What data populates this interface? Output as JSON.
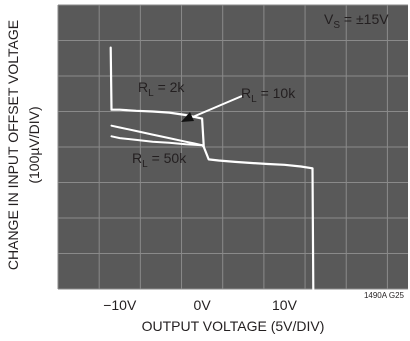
{
  "chart_data": {
    "type": "line",
    "xlabel": "OUTPUT VOLTAGE (5V/DIV)",
    "ylabel": "CHANGE IN INPUT OFFSET VOLTAGE",
    "ylabel_units": "(100µV/DIV)",
    "x_tick_labels": [
      "−10V",
      "0V",
      "10V"
    ],
    "x_tick_values": [
      -10,
      0,
      10
    ],
    "xlim": [
      -17.5,
      25
    ],
    "ylim": [
      -400,
      400
    ],
    "grid": true,
    "background": "oscilloscope photo",
    "figure_code": "1490A G25",
    "condition": {
      "prefix": "V",
      "subscript": "S",
      "value": " = ±15V"
    },
    "series": [
      {
        "name": "RL = 2k",
        "name_prefix": "R",
        "name_subscript": "L",
        "name_value": " = 2k",
        "x": [
          -11.1,
          -11,
          -10,
          -8,
          -6,
          -4,
          -2,
          0,
          0.2,
          0.8,
          2,
          4,
          6,
          8,
          10,
          12,
          13.4,
          13.5
        ],
        "y": [
          280,
          105,
          105,
          102,
          100,
          97,
          90,
          80,
          0,
          -35,
          -38,
          -42,
          -45,
          -48,
          -50,
          -55,
          -60,
          -400
        ]
      },
      {
        "name": "RL = 10k",
        "name_prefix": "R",
        "name_subscript": "L",
        "name_value": " = 10k",
        "x": [
          -11,
          -10,
          -8,
          -6,
          -4,
          -2,
          -1,
          0
        ],
        "y": [
          60,
          55,
          45,
          35,
          25,
          15,
          10,
          5
        ]
      },
      {
        "name": "RL = 50k",
        "name_prefix": "R",
        "name_subscript": "L",
        "name_value": " = 50k",
        "x": [
          -11,
          -10,
          -8,
          -6,
          -4,
          -2,
          0,
          0.2
        ],
        "y": [
          30,
          25,
          20,
          15,
          12,
          8,
          5,
          0
        ]
      }
    ],
    "colors": {
      "scope_background": "#595959",
      "grid": "#8a8a8a",
      "trace": "#ffffff",
      "text": "#231f20"
    }
  }
}
